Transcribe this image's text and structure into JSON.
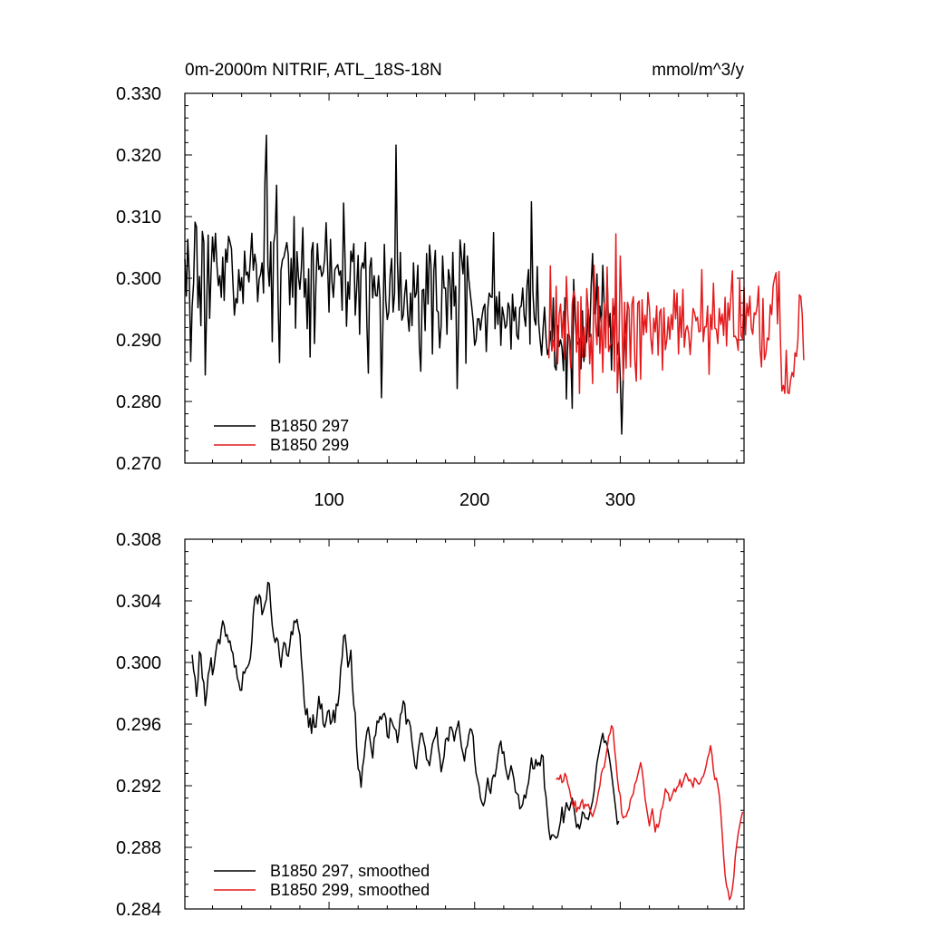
{
  "chart_data": [
    {
      "type": "line",
      "title": "0m-2000m NITRIF, ATL_18S-18N",
      "units": "mmol/m^3/y",
      "xlabel": "",
      "ylabel": "",
      "xlim": [
        1,
        385
      ],
      "ylim": [
        0.27,
        0.33
      ],
      "yticks": [
        0.27,
        0.28,
        0.29,
        0.3,
        0.31,
        0.32,
        0.33
      ],
      "ytick_labels": [
        "0.270",
        "0.280",
        "0.290",
        "0.300",
        "0.310",
        "0.320",
        "0.330"
      ],
      "xticks": [
        100,
        200,
        300
      ],
      "xtick_labels": [
        "100",
        "200",
        "300"
      ],
      "legend_position": "bottom-left",
      "series": [
        {
          "name": "B1850 297",
          "color": "#000000",
          "x_start": 1,
          "values": [
            0.3031,
            0.2971,
            0.3063,
            0.3006,
            0.2865,
            0.2954,
            0.2992,
            0.3091,
            0.3083,
            0.2952,
            0.3003,
            0.2923,
            0.3076,
            0.3059,
            0.2843,
            0.2958,
            0.307,
            0.2935,
            0.3011,
            0.3067,
            0.3027,
            0.3073,
            0.3022,
            0.2988,
            0.3004,
            0.2969,
            0.3034,
            0.2964,
            0.3047,
            0.3026,
            0.3068,
            0.3059,
            0.3048,
            0.2993,
            0.294,
            0.2967,
            0.296,
            0.3014,
            0.298,
            0.3001,
            0.2959,
            0.3044,
            0.3005,
            0.301,
            0.2994,
            0.3033,
            0.3073,
            0.3013,
            0.3039,
            0.3022,
            0.2962,
            0.2999,
            0.3006,
            0.3025,
            0.2976,
            0.3159,
            0.3232,
            0.302,
            0.2987,
            0.3059,
            0.2897,
            0.3057,
            0.3073,
            0.3151,
            0.2963,
            0.2863,
            0.3013,
            0.303,
            0.3034,
            0.3046,
            0.3058,
            0.3038,
            0.2957,
            0.3032,
            0.2969,
            0.31,
            0.2919,
            0.3043,
            0.3002,
            0.2982,
            0.3016,
            0.3082,
            0.2969,
            0.2999,
            0.2918,
            0.3015,
            0.2872,
            0.3044,
            0.3058,
            0.2894,
            0.2991,
            0.3056,
            0.3014,
            0.302,
            0.3003,
            0.301,
            0.3031,
            0.309,
            0.3022,
            0.2945,
            0.3063,
            0.2995,
            0.2969,
            0.3014,
            0.3018,
            0.3022,
            0.3005,
            0.3012,
            0.2948,
            0.3122,
            0.3031,
            0.2922,
            0.2994,
            0.2966,
            0.3044,
            0.3027,
            0.3056,
            0.294,
            0.2984,
            0.3037,
            0.2909,
            0.3014,
            0.3025,
            0.3016,
            0.3058,
            0.2924,
            0.2846,
            0.3017,
            0.3033,
            0.2968,
            0.3004,
            0.2972,
            0.2971,
            0.3004,
            0.2967,
            0.2806,
            0.2925,
            0.3055,
            0.2963,
            0.2933,
            0.2945,
            0.3006,
            0.3032,
            0.2945,
            0.2975,
            0.3216,
            0.3025,
            0.2948,
            0.3042,
            0.2932,
            0.294,
            0.2975,
            0.2997,
            0.2941,
            0.2914,
            0.2976,
            0.2923,
            0.3025,
            0.2969,
            0.2976,
            0.3021,
            0.2892,
            0.2849,
            0.298,
            0.2982,
            0.2915,
            0.304,
            0.2958,
            0.3054,
            0.3021,
            0.2877,
            0.3013,
            0.3045,
            0.2948,
            0.2945,
            0.2887,
            0.2924,
            0.3036,
            0.2984,
            0.2984,
            0.2909,
            0.3014,
            0.2998,
            0.2933,
            0.3042,
            0.2955,
            0.2987,
            0.2821,
            0.293,
            0.3062,
            0.3034,
            0.3007,
            0.3056,
            0.2862,
            0.3036,
            0.2998,
            0.2975,
            0.2954,
            0.293,
            0.2891,
            0.29,
            0.2934,
            0.2934,
            0.2916,
            0.2937,
            0.2952,
            0.2958,
            0.2881,
            0.295,
            0.2976,
            0.297,
            0.2969,
            0.3074,
            0.2918,
            0.297,
            0.2925,
            0.2978,
            0.2891,
            0.2953,
            0.2939,
            0.2919,
            0.2924,
            0.296,
            0.2951,
            0.2885,
            0.2974,
            0.2931,
            0.2953,
            0.2907,
            0.2901,
            0.2952,
            0.2955,
            0.2984,
            0.2939,
            0.2922,
            0.2989,
            0.3014,
            0.2893,
            0.3124,
            0.2978,
            0.2934,
            0.2924,
            0.3019,
            0.2927,
            0.2899,
            0.2875,
            0.2918,
            0.2953,
            0.2904,
            0.2876,
            0.2886,
            0.2914,
            0.2885,
            0.2968,
            0.2857,
            0.2851,
            0.2923,
            0.2889,
            0.29,
            0.2887,
            0.285,
            0.2968,
            0.2804,
            0.2909,
            0.2907,
            0.2882,
            0.2789,
            0.2998,
            0.2933,
            0.2898,
            0.2893,
            0.2902,
            0.2853,
            0.2947,
            0.2865,
            0.2892,
            0.2898,
            0.295,
            0.2905,
            0.2987,
            0.304,
            0.2943,
            0.2942,
            0.3007,
            0.2906,
            0.2955,
            0.2921,
            0.3021,
            0.2953,
            0.2911,
            0.3004,
            0.292,
            0.2943,
            0.2851,
            0.2961,
            0.2941,
            0.2972,
            0.2876,
            0.2896,
            0.2839,
            0.2747,
            0.2836,
            0.291,
            0.2911,
            0.2958
          ]
        },
        {
          "name": "B1850 299",
          "color": "#e41a1c",
          "x_start": 251,
          "values": [
            0.287,
            0.302,
            0.2882,
            0.2899,
            0.2882,
            0.2987,
            0.2861,
            0.2941,
            0.2958,
            0.2903,
            0.2946,
            0.2869,
            0.3003,
            0.2939,
            0.2898,
            0.2854,
            0.2958,
            0.2979,
            0.2968,
            0.288,
            0.2962,
            0.2813,
            0.297,
            0.2872,
            0.292,
            0.2873,
            0.2983,
            0.2947,
            0.2861,
            0.2909,
            0.2829,
            0.3021,
            0.2931,
            0.2892,
            0.2986,
            0.2878,
            0.2937,
            0.2847,
            0.296,
            0.2887,
            0.3018,
            0.2881,
            0.2891,
            0.2895,
            0.2967,
            0.2849,
            0.3072,
            0.2814,
            0.2873,
            0.3036,
            0.2961,
            0.2835,
            0.2961,
            0.2854,
            0.2961,
            0.295,
            0.2856,
            0.2958,
            0.297,
            0.2868,
            0.2833,
            0.2959,
            0.2963,
            0.2836,
            0.2965,
            0.2908,
            0.294,
            0.2912,
            0.2977,
            0.2953,
            0.2903,
            0.2877,
            0.2935,
            0.2913,
            0.2955,
            0.2875,
            0.2944,
            0.295,
            0.2851,
            0.2952,
            0.2884,
            0.2901,
            0.2937,
            0.2901,
            0.2941,
            0.2917,
            0.2981,
            0.2934,
            0.2976,
            0.2877,
            0.2954,
            0.2904,
            0.2982,
            0.2888,
            0.2916,
            0.2923,
            0.291,
            0.2876,
            0.2912,
            0.2951,
            0.2944,
            0.2931,
            0.2937,
            0.2913,
            0.2914,
            0.3014,
            0.2897,
            0.2921,
            0.2921,
            0.2955,
            0.2844,
            0.2941,
            0.2917,
            0.2992,
            0.2919,
            0.2917,
            0.2894,
            0.2951,
            0.2925,
            0.2942,
            0.2907,
            0.2969,
            0.289,
            0.296,
            0.2932,
            0.2973,
            0.3012,
            0.2905,
            0.2906,
            0.29,
            0.2883,
            0.2998,
            0.2907,
            0.2901,
            0.2985,
            0.2908,
            0.2959,
            0.2939,
            0.2971,
            0.2919,
            0.2909,
            0.2944,
            0.2941,
            0.2954,
            0.2987,
            0.2885,
            0.2856,
            0.2967,
            0.2868,
            0.2878,
            0.2903,
            0.29,
            0.2957,
            0.2941,
            0.2988,
            0.3,
            0.3009,
            0.2926,
            0.3011,
            0.29,
            0.2817,
            0.2826,
            0.2813,
            0.2883,
            0.2814,
            0.2813,
            0.2835,
            0.2847,
            0.284,
            0.2879,
            0.2873,
            0.29,
            0.2973,
            0.297,
            0.294,
            0.2867
          ]
        }
      ]
    },
    {
      "type": "line",
      "title": "",
      "xlabel": "",
      "ylabel": "",
      "xlim": [
        1,
        385
      ],
      "ylim": [
        0.284,
        0.308
      ],
      "yticks": [
        0.284,
        0.288,
        0.292,
        0.296,
        0.3,
        0.304,
        0.308
      ],
      "ytick_labels": [
        "0.284",
        "0.288",
        "0.292",
        "0.296",
        "0.300",
        "0.304",
        "0.308"
      ],
      "xticks": [
        100,
        200,
        300
      ],
      "xtick_labels": [],
      "legend_position": "bottom-left",
      "series": [
        {
          "name": "B1850 297, smoothed",
          "color": "#000000",
          "x_start": 6,
          "values": [
            0.3005,
            0.2995,
            0.299,
            0.2978,
            0.2988,
            0.3007,
            0.3005,
            0.299,
            0.2987,
            0.2972,
            0.298,
            0.2992,
            0.2996,
            0.3003,
            0.2992,
            0.2997,
            0.3005,
            0.3012,
            0.3015,
            0.3012,
            0.3021,
            0.3027,
            0.3024,
            0.3017,
            0.3018,
            0.3013,
            0.3014,
            0.3008,
            0.3006,
            0.2997,
            0.2998,
            0.299,
            0.2987,
            0.2982,
            0.2982,
            0.2994,
            0.2993,
            0.2996,
            0.2997,
            0.2999,
            0.3003,
            0.3014,
            0.3032,
            0.3041,
            0.3043,
            0.3038,
            0.3044,
            0.3042,
            0.3031,
            0.3034,
            0.3038,
            0.3041,
            0.3052,
            0.3051,
            0.3036,
            0.3024,
            0.3017,
            0.3013,
            0.3016,
            0.3014,
            0.3004,
            0.2997,
            0.3007,
            0.3013,
            0.3012,
            0.3005,
            0.3004,
            0.3011,
            0.302,
            0.3018,
            0.3027,
            0.3026,
            0.3028,
            0.3022,
            0.3018,
            0.3002,
            0.299,
            0.2974,
            0.2966,
            0.297,
            0.2958,
            0.2964,
            0.2954,
            0.2966,
            0.2958,
            0.2958,
            0.2968,
            0.2978,
            0.297,
            0.2973,
            0.296,
            0.2958,
            0.2962,
            0.2968,
            0.2969,
            0.296,
            0.2962,
            0.2969,
            0.2961,
            0.2973,
            0.2972,
            0.298,
            0.2996,
            0.3003,
            0.3017,
            0.3018,
            0.3009,
            0.2997,
            0.3001,
            0.3008,
            0.2986,
            0.2972,
            0.2967,
            0.2944,
            0.2931,
            0.2929,
            0.2919,
            0.2932,
            0.2938,
            0.2948,
            0.2955,
            0.2958,
            0.2951,
            0.2944,
            0.2938,
            0.2951,
            0.2953,
            0.2962,
            0.2961,
            0.2965,
            0.2963,
            0.2966,
            0.2967,
            0.2964,
            0.2952,
            0.2951,
            0.2964,
            0.2962,
            0.2959,
            0.2957,
            0.2956,
            0.2948,
            0.2955,
            0.2966,
            0.2968,
            0.2975,
            0.2973,
            0.296,
            0.2963,
            0.2962,
            0.2958,
            0.2948,
            0.2941,
            0.2933,
            0.2931,
            0.2941,
            0.2948,
            0.2954,
            0.2954,
            0.2949,
            0.2945,
            0.2937,
            0.2936,
            0.2933,
            0.294,
            0.2947,
            0.295,
            0.2952,
            0.2958,
            0.2945,
            0.2939,
            0.2929,
            0.2934,
            0.2939,
            0.295,
            0.2951,
            0.2949,
            0.2958,
            0.2958,
            0.2955,
            0.2949,
            0.2955,
            0.2958,
            0.2962,
            0.2953,
            0.2945,
            0.2941,
            0.2936,
            0.2944,
            0.2946,
            0.2953,
            0.2957,
            0.2956,
            0.2952,
            0.2937,
            0.2928,
            0.2924,
            0.292,
            0.2912,
            0.2909,
            0.2907,
            0.291,
            0.2918,
            0.2925,
            0.2918,
            0.2915,
            0.2924,
            0.2927,
            0.2926,
            0.2932,
            0.294,
            0.2946,
            0.2949,
            0.2941,
            0.2942,
            0.2933,
            0.2928,
            0.2924,
            0.2928,
            0.2933,
            0.2929,
            0.2924,
            0.2916,
            0.2915,
            0.2914,
            0.2905,
            0.2906,
            0.2908,
            0.2914,
            0.2912,
            0.2918,
            0.2922,
            0.293,
            0.2938,
            0.2931,
            0.2931,
            0.2937,
            0.2933,
            0.2935,
            0.2933,
            0.294,
            0.2939,
            0.2919,
            0.2913,
            0.2902,
            0.2891,
            0.2885,
            0.2888,
            0.2888,
            0.2887,
            0.2886,
            0.2887,
            0.2892,
            0.2897,
            0.2906,
            0.2896,
            0.2903,
            0.2909,
            0.2906,
            0.2904,
            0.2908,
            0.2912,
            0.2907,
            0.29,
            0.2893,
            0.2895,
            0.2892,
            0.2896,
            0.2903,
            0.2902,
            0.2899,
            0.2899,
            0.2898,
            0.2902,
            0.2906,
            0.291,
            0.2916,
            0.2926,
            0.2935,
            0.294,
            0.2945,
            0.295,
            0.2954,
            0.2948,
            0.2949,
            0.2946,
            0.2941,
            0.2935,
            0.2928,
            0.292,
            0.2912,
            0.2904,
            0.2895,
            0.2897
          ]
        },
        {
          "name": "B1850 299, smoothed",
          "color": "#e41a1c",
          "x_start": 256,
          "values": [
            0.2924,
            0.2925,
            0.2924,
            0.2927,
            0.2922,
            0.2923,
            0.2928,
            0.2926,
            0.2921,
            0.2918,
            0.2913,
            0.2909,
            0.2906,
            0.291,
            0.2903,
            0.2906,
            0.2905,
            0.2909,
            0.2911,
            0.2905,
            0.2908,
            0.2907,
            0.2908,
            0.2905,
            0.2902,
            0.29,
            0.2903,
            0.2906,
            0.291,
            0.2916,
            0.292,
            0.2928,
            0.2931,
            0.2932,
            0.2938,
            0.2944,
            0.2952,
            0.2954,
            0.2959,
            0.2957,
            0.2945,
            0.2936,
            0.2925,
            0.2917,
            0.2914,
            0.2902,
            0.2899,
            0.29,
            0.29,
            0.2903,
            0.2905,
            0.2911,
            0.2913,
            0.2915,
            0.2921,
            0.2923,
            0.2927,
            0.2931,
            0.2935,
            0.293,
            0.2922,
            0.2912,
            0.2906,
            0.29,
            0.2894,
            0.29,
            0.2905,
            0.2898,
            0.289,
            0.2895,
            0.2893,
            0.2897,
            0.2904,
            0.2906,
            0.2911,
            0.2918,
            0.2916,
            0.2915,
            0.291,
            0.2912,
            0.2915,
            0.2918,
            0.2916,
            0.2919,
            0.292,
            0.2924,
            0.2919,
            0.2922,
            0.2925,
            0.2928,
            0.2926,
            0.2923,
            0.2924,
            0.2922,
            0.2919,
            0.2925,
            0.2924,
            0.2922,
            0.2921,
            0.2922,
            0.2925,
            0.2926,
            0.2929,
            0.2933,
            0.2938,
            0.2941,
            0.2946,
            0.294,
            0.293,
            0.2924,
            0.2925,
            0.292,
            0.2914,
            0.2903,
            0.2889,
            0.2874,
            0.2862,
            0.2855,
            0.2852,
            0.2846,
            0.2848,
            0.2853,
            0.2861,
            0.2874,
            0.2882,
            0.2889,
            0.2894,
            0.2899,
            0.2903
          ]
        }
      ]
    }
  ]
}
